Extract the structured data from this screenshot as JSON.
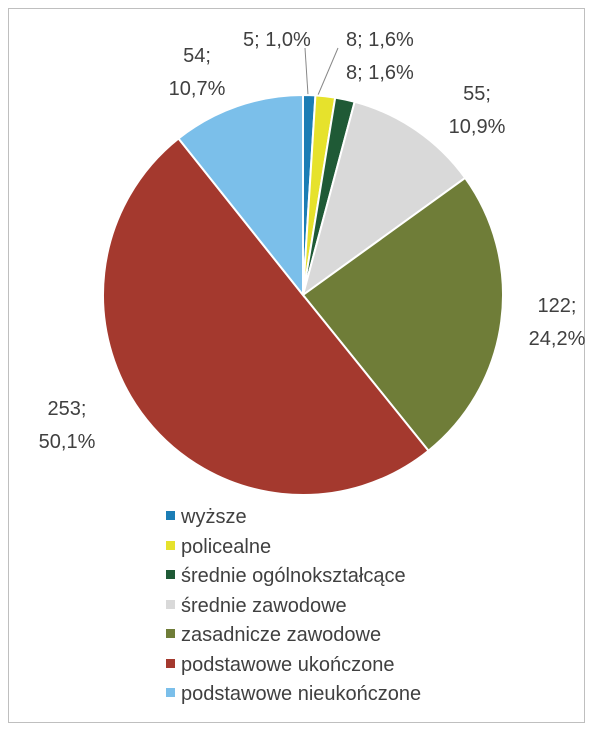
{
  "chart_data": {
    "type": "pie",
    "categories": [
      "wyższe",
      "policealne",
      "średnie ogólnokształcące",
      "średnie zawodowe",
      "zasadnicze zawodowe",
      "podstawowe ukończone",
      "podstawowe nieukończone"
    ],
    "values": [
      5,
      8,
      8,
      55,
      122,
      253,
      54
    ],
    "value_labels": [
      "5; 1,0%",
      "8; 1,6%",
      "8; 1,6%",
      "55; 10,9%",
      "122; 24,2%",
      "253; 50,1%",
      "54; 10,7%"
    ],
    "colors": [
      "#1b7db5",
      "#e6e22c",
      "#1f5a36",
      "#d9d9d9",
      "#6f7d38",
      "#a4392e",
      "#7bbfea"
    ]
  }
}
